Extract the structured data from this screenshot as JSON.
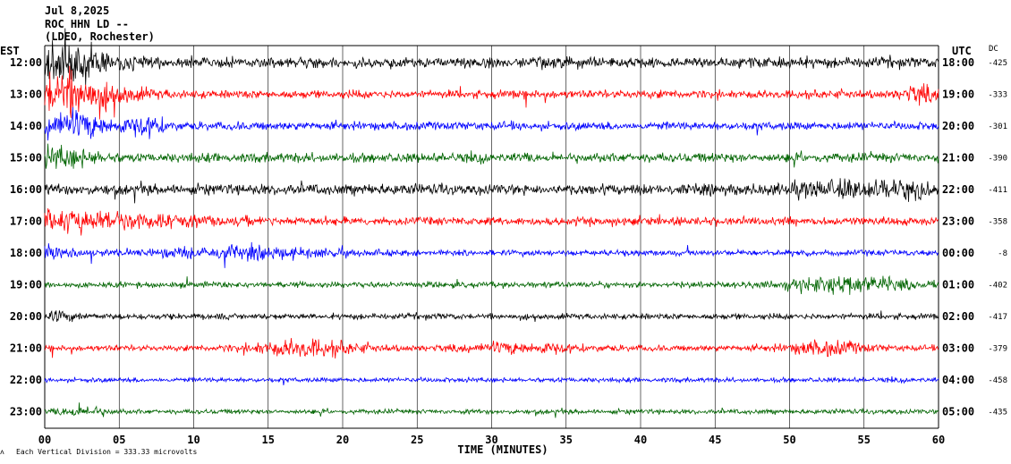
{
  "header": {
    "date": "Jul 8,2025",
    "station": "ROC HHN LD --",
    "network": "(LDEO, Rochester)"
  },
  "chart_data": {
    "type": "line",
    "title": "Jul 8,2025",
    "left_axis_label": "EST",
    "right_axis_label": "UTC",
    "dc_label": "DC",
    "xlabel": "TIME (MINUTES)",
    "xlim": [
      0,
      60
    ],
    "x_ticks": [
      "00",
      "05",
      "10",
      "15",
      "20",
      "25",
      "30",
      "35",
      "40",
      "45",
      "50",
      "55",
      "60"
    ],
    "scale_note": "Each Vertical Division = 333.33 microvolts",
    "rows": [
      {
        "est": "12:00",
        "utc": "18:00",
        "dc": "-425",
        "color": "#000000"
      },
      {
        "est": "13:00",
        "utc": "19:00",
        "dc": "-333",
        "color": "#ff0000"
      },
      {
        "est": "14:00",
        "utc": "20:00",
        "dc": "-301",
        "color": "#0000ff"
      },
      {
        "est": "15:00",
        "utc": "21:00",
        "dc": "-390",
        "color": "#006400"
      },
      {
        "est": "16:00",
        "utc": "22:00",
        "dc": "-411",
        "color": "#000000"
      },
      {
        "est": "17:00",
        "utc": "23:00",
        "dc": "-358",
        "color": "#ff0000"
      },
      {
        "est": "18:00",
        "utc": "00:00",
        "dc": "-8",
        "color": "#0000ff"
      },
      {
        "est": "19:00",
        "utc": "01:00",
        "dc": "-402",
        "color": "#006400"
      },
      {
        "est": "20:00",
        "utc": "02:00",
        "dc": "-417",
        "color": "#000000"
      },
      {
        "est": "21:00",
        "utc": "03:00",
        "dc": "-379",
        "color": "#ff0000"
      },
      {
        "est": "22:00",
        "utc": "04:00",
        "dc": "-458",
        "color": "#0000ff"
      },
      {
        "est": "23:00",
        "utc": "05:00",
        "dc": "-435",
        "color": "#006400"
      }
    ]
  }
}
